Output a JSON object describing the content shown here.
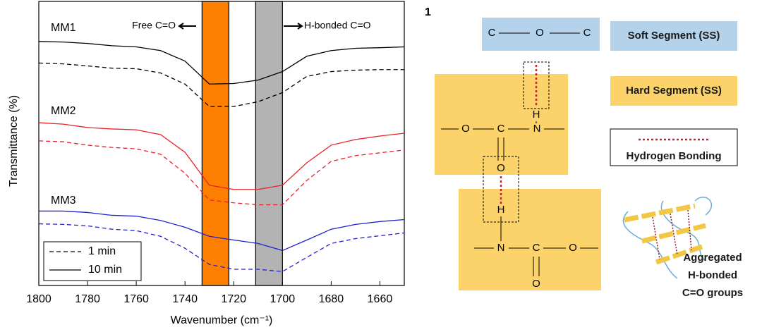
{
  "chart_data": {
    "type": "line",
    "x_label": "Wavenumber (cm⁻¹)",
    "y_label": "Transmittance (%)",
    "x": [
      1800,
      1790,
      1780,
      1770,
      1760,
      1750,
      1740,
      1730,
      1720,
      1710,
      1700,
      1690,
      1680,
      1670,
      1660,
      1650
    ],
    "xlim": [
      1800,
      1650
    ],
    "xticks": [
      1800,
      1780,
      1760,
      1740,
      1720,
      1700,
      1680,
      1660
    ],
    "ylim": [
      0,
      100
    ],
    "bands": [
      {
        "from": 1733,
        "to": 1722,
        "color": "#ff7f00"
      },
      {
        "from": 1711,
        "to": 1700,
        "color": "#b3b3b3"
      }
    ],
    "annotations": [
      "Free C=O",
      "H-bonded C=O"
    ],
    "panel_mark": "1",
    "labels": [
      {
        "text": "MM1",
        "color": "#000000"
      },
      {
        "text": "MM2",
        "color": "#e8222a"
      },
      {
        "text": "MM3",
        "color": "#2020d0"
      }
    ],
    "legend": [
      {
        "text": "1 min",
        "dash": "6 4"
      },
      {
        "text": "10 min",
        "dash": "none"
      }
    ],
    "series": [
      {
        "label": 0,
        "legend": 1,
        "color": "#000000",
        "values": [
          85.9,
          85.7,
          85.2,
          84.4,
          84.0,
          82.7,
          79.0,
          70.9,
          71.1,
          72.3,
          75.3,
          80.7,
          82.7,
          83.5,
          83.7,
          84.0
        ]
      },
      {
        "label": 0,
        "legend": 0,
        "color": "#000000",
        "values": [
          78.3,
          78.0,
          77.3,
          76.5,
          76.3,
          74.8,
          70.9,
          63.0,
          63.0,
          64.7,
          67.9,
          73.6,
          75.3,
          75.8,
          76.0,
          76.0
        ]
      },
      {
        "label": 1,
        "legend": 1,
        "color": "#e8222a",
        "values": [
          57.3,
          56.8,
          55.6,
          55.1,
          54.8,
          53.1,
          46.9,
          35.3,
          33.8,
          33.8,
          35.3,
          43.2,
          49.4,
          51.4,
          52.6,
          53.6
        ]
      },
      {
        "label": 1,
        "legend": 0,
        "color": "#e8222a",
        "values": [
          50.9,
          50.6,
          49.4,
          48.6,
          48.1,
          46.2,
          39.5,
          30.1,
          29.1,
          28.4,
          28.4,
          37.0,
          43.7,
          45.7,
          46.7,
          47.7
        ]
      },
      {
        "label": 2,
        "legend": 1,
        "color": "#2020d0",
        "values": [
          26.2,
          26.2,
          25.7,
          24.7,
          24.4,
          22.9,
          20.5,
          17.3,
          16.0,
          14.8,
          12.3,
          16.0,
          19.8,
          21.5,
          22.5,
          23.2
        ]
      },
      {
        "label": 2,
        "legend": 0,
        "color": "#2020d0",
        "values": [
          21.7,
          21.5,
          21.0,
          19.8,
          19.3,
          17.3,
          13.1,
          7.4,
          5.7,
          5.7,
          4.9,
          9.9,
          14.8,
          16.5,
          17.5,
          18.5
        ]
      }
    ]
  },
  "diagram": {
    "legend": [
      "Soft Segment (SS)",
      "Hard Segment (SS)",
      "Hydrogen Bonding"
    ],
    "atoms": [
      "C",
      "O",
      "C",
      "H",
      "O",
      "C",
      "N",
      "O",
      "H",
      "N",
      "C",
      "O",
      "O"
    ],
    "caption": [
      "Aggregated",
      "H-bonded",
      "C=O groups"
    ]
  }
}
